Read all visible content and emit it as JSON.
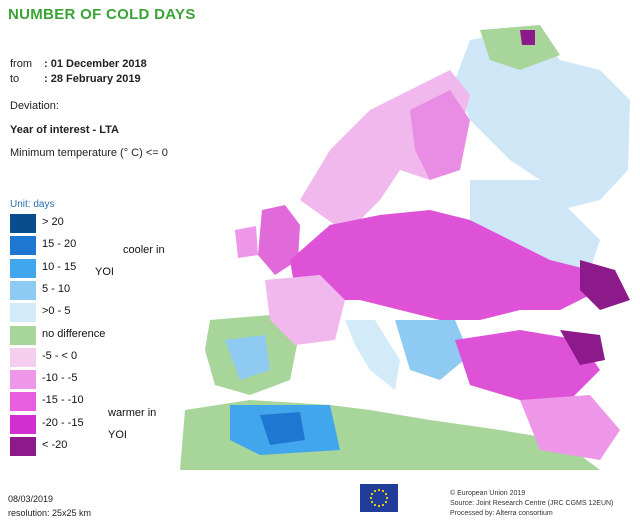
{
  "header": {
    "title": "NUMBER OF COLD DAYS",
    "from_label": "from",
    "from_value": ": 01 December 2018",
    "to_label": "to",
    "to_value": ": 28 February 2019",
    "deviation": "Deviation:",
    "year_of_interest": "Year of interest - LTA",
    "criterion": "Minimum temperature (° C) <= 0"
  },
  "legend": {
    "unit": "Unit: days",
    "items": [
      {
        "label": "> 20",
        "color": "#0a4d8c"
      },
      {
        "label": "15 - 20",
        "color": "#1e78d2"
      },
      {
        "label": "10 - 15",
        "color": "#42a6ec"
      },
      {
        "label": "5 - 10",
        "color": "#8fcaf2"
      },
      {
        "label": ">0 - 5",
        "color": "#d3eaf9"
      },
      {
        "label": "no difference",
        "color": "#a8d59a"
      },
      {
        "label": "-5 - < 0",
        "color": "#f4cdef"
      },
      {
        "label": "-10 - -5",
        "color": "#ee96e8"
      },
      {
        "label": "-15 - -10",
        "color": "#e75fe0"
      },
      {
        "label": "-20 - -15",
        "color": "#d12fd0"
      },
      {
        "label": "< -20",
        "color": "#8c1a8a"
      }
    ],
    "cooler_note": "cooler in",
    "cooler_yoi": "YOI",
    "warmer_note": "warmer in",
    "warmer_yoi": "YOI"
  },
  "footer": {
    "date": "08/03/2019",
    "resolution": "resolution: 25x25 km",
    "copyright": "© European Union 2019",
    "source": "Source: Joint Research Centre (JRC CGMS 12EUN)",
    "processed": "Processed by: Alterra consortium"
  },
  "colors": {
    "title": "#3aa335",
    "sea": "#ffffff",
    "eu_flag": "#1f3d99"
  }
}
